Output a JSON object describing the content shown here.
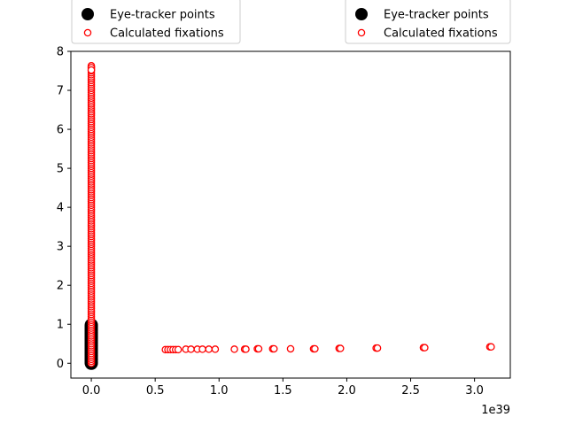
{
  "chart_data": {
    "type": "scatter",
    "title": "",
    "xlabel": "",
    "ylabel": "",
    "x_offset_label": "1e39",
    "xlim": [
      -0.16,
      3.28
    ],
    "ylim": [
      -0.38,
      8.0
    ],
    "x_ticks": [
      0.0,
      0.5,
      1.0,
      1.5,
      2.0,
      2.5,
      3.0
    ],
    "x_tick_labels": [
      "0.0",
      "0.5",
      "1.0",
      "1.5",
      "2.0",
      "2.5",
      "3.0"
    ],
    "y_ticks": [
      0,
      1,
      2,
      3,
      4,
      5,
      6,
      7,
      8
    ],
    "y_tick_labels": [
      "0",
      "1",
      "2",
      "3",
      "4",
      "5",
      "6",
      "7",
      "8"
    ],
    "grid": false,
    "legend_placement": "above-plot",
    "legends": [
      {
        "entries": [
          {
            "label": "Eye-tracker points",
            "marker": "filled-circle",
            "color": "#000000"
          },
          {
            "label": "Calculated fixations",
            "marker": "open-circle",
            "color": "#ff0000"
          }
        ]
      },
      {
        "entries": [
          {
            "label": "Eye-tracker points",
            "marker": "filled-circle",
            "color": "#000000"
          },
          {
            "label": "Calculated fixations",
            "marker": "open-circle",
            "color": "#ff0000"
          }
        ]
      }
    ],
    "series": [
      {
        "name": "Eye-tracker points",
        "marker": "filled-circle",
        "color": "#000000",
        "x": [
          0,
          0,
          0,
          0,
          0,
          0,
          0,
          0,
          0,
          0,
          0,
          0,
          0,
          0,
          0,
          0,
          0,
          0,
          0,
          0,
          0,
          0,
          0,
          0,
          0,
          0,
          0,
          0,
          0,
          0,
          0,
          0,
          0,
          0,
          0,
          0,
          0,
          0,
          0,
          0
        ],
        "y": [
          0.0,
          0.02,
          0.05,
          0.08,
          0.1,
          0.12,
          0.15,
          0.18,
          0.2,
          0.23,
          0.25,
          0.28,
          0.3,
          0.33,
          0.35,
          0.38,
          0.4,
          0.43,
          0.45,
          0.48,
          0.5,
          0.53,
          0.55,
          0.58,
          0.6,
          0.63,
          0.65,
          0.68,
          0.7,
          0.73,
          0.75,
          0.78,
          0.8,
          0.83,
          0.85,
          0.88,
          0.9,
          0.93,
          0.95,
          0.98
        ]
      },
      {
        "name": "Calculated fixations",
        "marker": "open-circle",
        "color": "#ff0000",
        "x": [
          0,
          0,
          0,
          0,
          0,
          0,
          0,
          0,
          0,
          0,
          0,
          0,
          0,
          0,
          0,
          0,
          0,
          0,
          0,
          0,
          0,
          0,
          0,
          0,
          0,
          0,
          0,
          0,
          0,
          0,
          0,
          0,
          0,
          0,
          0,
          0,
          0,
          0,
          0,
          0,
          0,
          0,
          0,
          0,
          0,
          0,
          0,
          0,
          0,
          0,
          0,
          0,
          0,
          0,
          0,
          0,
          0,
          0,
          0,
          0,
          0,
          0,
          0,
          0,
          0,
          0,
          0,
          0,
          0,
          0,
          0,
          0,
          0,
          0,
          0,
          0,
          0,
          0,
          0,
          0,
          0,
          0,
          0,
          0,
          0,
          0,
          0,
          0,
          0,
          0,
          0,
          0,
          0,
          0,
          0,
          0,
          0,
          0,
          0,
          0,
          0,
          0,
          0,
          0,
          0,
          0,
          0,
          0,
          0,
          0,
          0,
          0,
          0,
          0,
          0,
          0,
          0,
          0,
          0,
          0,
          0,
          0,
          0,
          0,
          0,
          0,
          0,
          0,
          0,
          0,
          0,
          0,
          0,
          0,
          0,
          0,
          0,
          0,
          0,
          0,
          0,
          0,
          0,
          0,
          0,
          0,
          0,
          0,
          0,
          0,
          0,
          0,
          0,
          0,
          0,
          0,
          0.58,
          0.6,
          0.62,
          0.64,
          0.66,
          0.68,
          0.74,
          0.78,
          0.83,
          0.87,
          0.92,
          0.97,
          1.12,
          1.2,
          1.21,
          1.3,
          1.31,
          1.42,
          1.43,
          1.56,
          1.74,
          1.75,
          1.94,
          1.95,
          2.23,
          2.24,
          2.6,
          2.61,
          3.12,
          3.13
        ],
        "y": [
          0.0,
          0.05,
          0.1,
          0.15,
          0.2,
          0.25,
          0.3,
          0.35,
          0.4,
          0.45,
          0.5,
          0.55,
          0.6,
          0.65,
          0.7,
          0.75,
          0.8,
          0.85,
          0.9,
          0.95,
          1.0,
          1.05,
          1.1,
          1.15,
          1.2,
          1.25,
          1.3,
          1.35,
          1.4,
          1.45,
          1.5,
          1.55,
          1.6,
          1.65,
          1.7,
          1.75,
          1.8,
          1.85,
          1.9,
          1.95,
          2.0,
          2.05,
          2.1,
          2.15,
          2.2,
          2.25,
          2.3,
          2.35,
          2.4,
          2.45,
          2.5,
          2.55,
          2.6,
          2.65,
          2.7,
          2.75,
          2.8,
          2.85,
          2.9,
          2.95,
          3.0,
          3.05,
          3.1,
          3.15,
          3.2,
          3.25,
          3.3,
          3.35,
          3.4,
          3.45,
          3.5,
          3.55,
          3.6,
          3.65,
          3.7,
          3.75,
          3.8,
          3.85,
          3.9,
          3.95,
          4.0,
          4.05,
          4.1,
          4.15,
          4.2,
          4.25,
          4.3,
          4.35,
          4.4,
          4.45,
          4.5,
          4.55,
          4.6,
          4.65,
          4.7,
          4.75,
          4.8,
          4.85,
          4.9,
          4.95,
          5.0,
          5.05,
          5.1,
          5.15,
          5.2,
          5.25,
          5.3,
          5.35,
          5.4,
          5.45,
          5.5,
          5.55,
          5.6,
          5.65,
          5.7,
          5.75,
          5.8,
          5.85,
          5.9,
          5.95,
          6.0,
          6.05,
          6.1,
          6.15,
          6.2,
          6.25,
          6.3,
          6.35,
          6.4,
          6.45,
          6.5,
          6.55,
          6.6,
          6.65,
          6.7,
          6.75,
          6.8,
          6.85,
          6.9,
          6.95,
          7.0,
          7.05,
          7.1,
          7.15,
          7.2,
          7.25,
          7.3,
          7.35,
          7.4,
          7.45,
          7.5,
          7.55,
          7.6,
          7.63,
          7.58,
          7.52,
          0.35,
          0.35,
          0.35,
          0.35,
          0.35,
          0.35,
          0.36,
          0.36,
          0.36,
          0.36,
          0.36,
          0.36,
          0.36,
          0.36,
          0.36,
          0.37,
          0.37,
          0.37,
          0.37,
          0.37,
          0.37,
          0.37,
          0.38,
          0.38,
          0.39,
          0.39,
          0.4,
          0.4,
          0.42,
          0.42
        ]
      }
    ]
  }
}
